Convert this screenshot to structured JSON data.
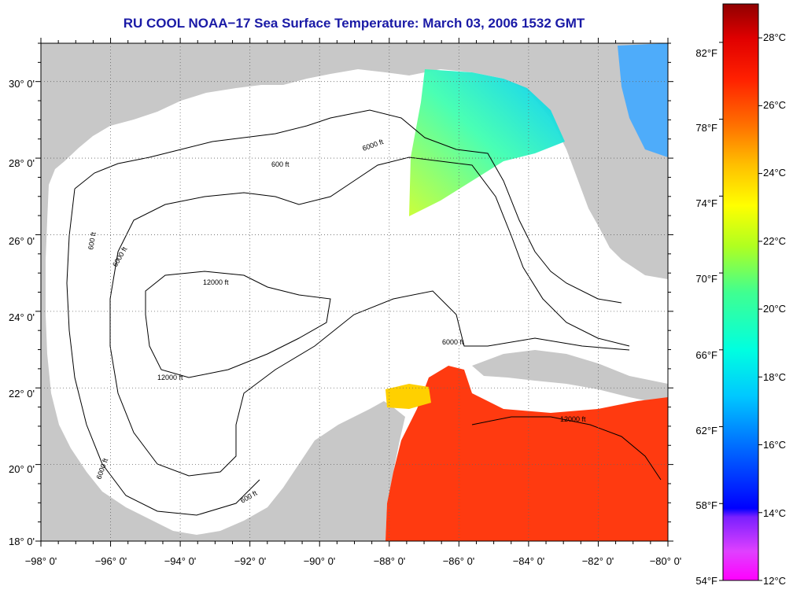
{
  "title": "RU COOL  NOAA−17  Sea Surface Temperature:  March 03, 2006 1532 GMT",
  "map": {
    "lon_labels": [
      "−98° 0'",
      "−96° 0'",
      "−94° 0'",
      "−92° 0'",
      "−90° 0'",
      "−88° 0'",
      "−86° 0'",
      "−84° 0'",
      "−82° 0'",
      "−80° 0'"
    ],
    "lat_labels": [
      "30° 0'",
      "28° 0'",
      "26° 0'",
      "24° 0'",
      "22° 0'",
      "20° 0'",
      "18° 0'"
    ],
    "lon_range": [
      -98,
      -80
    ],
    "lat_range": [
      18,
      31
    ],
    "grid": "dotted",
    "colors": {
      "land": "#c8c8c8",
      "water": "#ffffff",
      "title": "#1a1aa6"
    },
    "contour_labels": [
      "600 ft",
      "6000 ft",
      "12000 ft"
    ]
  },
  "colorbar": {
    "c_labels": [
      "28°C",
      "26°C",
      "24°C",
      "22°C",
      "20°C",
      "18°C",
      "16°C",
      "14°C",
      "12°C"
    ],
    "f_labels": [
      "82°F",
      "78°F",
      "74°F",
      "70°F",
      "66°F",
      "62°F",
      "58°F",
      "54°F"
    ],
    "range_c": [
      12,
      29
    ],
    "range_f": [
      54,
      84
    ]
  }
}
